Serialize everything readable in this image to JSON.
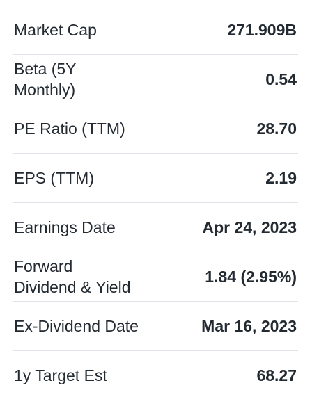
{
  "stats": [
    {
      "label": "Market Cap",
      "value": "271.909B"
    },
    {
      "label": "Beta (5Y\nMonthly)",
      "value": "0.54"
    },
    {
      "label": "PE Ratio (TTM)",
      "value": "28.70"
    },
    {
      "label": "EPS (TTM)",
      "value": "2.19"
    },
    {
      "label": "Earnings Date",
      "value": "Apr 24, 2023"
    },
    {
      "label": "Forward\nDividend & Yield",
      "value": "1.84 (2.95%)"
    },
    {
      "label": "Ex-Dividend Date",
      "value": "Mar 16, 2023"
    },
    {
      "label": "1y Target Est",
      "value": "68.27"
    }
  ]
}
